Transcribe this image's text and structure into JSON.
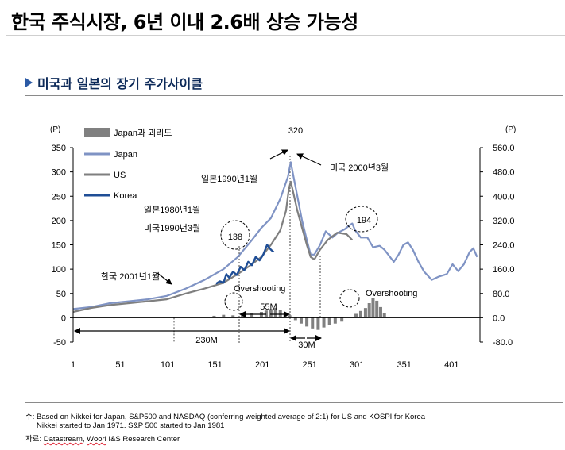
{
  "header": {
    "title": "한국 주식시장, 6년 이내 2.6배 상승 가능성",
    "subtitle": "미국과 일본의 장기 주가사이클"
  },
  "notes": {
    "line1": "주: Based on Nikkei for Japan, S&P500 and NASDAQ (conferring weighted average of 2:1) for US and KOSPI for Korea",
    "line2": "Nikkei started to Jan 1971. S&P 500 started to Jan 1981",
    "source_label": "자료: ",
    "source_part1": "Datastream",
    "source_sep": ", ",
    "source_part2": "Woori",
    "source_rest": " I&S Research Center"
  },
  "colors": {
    "japan": "#7f93c4",
    "us": "#7f7f7f",
    "korea": "#1f4e96",
    "gap": "#808080",
    "accent": "#2b5aa5"
  },
  "chart_data": {
    "type": "line",
    "left_unit": "(P)",
    "right_unit": "(P)",
    "x": {
      "min": 1,
      "max": 431,
      "ticks": [
        1,
        51,
        101,
        151,
        201,
        251,
        301,
        351,
        401
      ]
    },
    "y_left": {
      "min": -50,
      "max": 350,
      "ticks": [
        "350",
        "300",
        "250",
        "200",
        "150",
        "100",
        "50",
        "0",
        "-50"
      ]
    },
    "y_right": {
      "min": -80,
      "max": 560,
      "ticks": [
        "560.0",
        "480.0",
        "400.0",
        "320.0",
        "240.0",
        "160.0",
        "80.0",
        "0.0",
        "-80.0"
      ]
    },
    "legend": [
      {
        "label": "Japan과 괴리도",
        "kind": "bar"
      },
      {
        "label": "Japan",
        "kind": "line",
        "color": "#7f93c4"
      },
      {
        "label": "US",
        "kind": "line",
        "color": "#7f7f7f"
      },
      {
        "label": "Korea",
        "kind": "line",
        "color": "#1f4e96"
      }
    ],
    "series": [
      {
        "name": "Japan",
        "axis": "left",
        "points": [
          [
            1,
            18
          ],
          [
            20,
            22
          ],
          [
            40,
            30
          ],
          [
            60,
            34
          ],
          [
            80,
            38
          ],
          [
            100,
            45
          ],
          [
            120,
            60
          ],
          [
            140,
            78
          ],
          [
            160,
            100
          ],
          [
            175,
            125
          ],
          [
            190,
            160
          ],
          [
            200,
            185
          ],
          [
            210,
            205
          ],
          [
            220,
            245
          ],
          [
            228,
            290
          ],
          [
            231,
            320
          ],
          [
            234,
            290
          ],
          [
            238,
            250
          ],
          [
            243,
            200
          ],
          [
            248,
            160
          ],
          [
            252,
            130
          ],
          [
            256,
            130
          ],
          [
            262,
            150
          ],
          [
            268,
            178
          ],
          [
            275,
            165
          ],
          [
            281,
            175
          ],
          [
            288,
            182
          ],
          [
            293,
            190
          ],
          [
            296,
            194
          ],
          [
            299,
            180
          ],
          [
            305,
            165
          ],
          [
            312,
            165
          ],
          [
            318,
            145
          ],
          [
            325,
            148
          ],
          [
            330,
            140
          ],
          [
            340,
            115
          ],
          [
            345,
            130
          ],
          [
            350,
            150
          ],
          [
            355,
            155
          ],
          [
            360,
            140
          ],
          [
            366,
            115
          ],
          [
            372,
            95
          ],
          [
            380,
            78
          ],
          [
            388,
            85
          ],
          [
            396,
            90
          ],
          [
            402,
            110
          ],
          [
            408,
            96
          ],
          [
            414,
            110
          ],
          [
            420,
            135
          ],
          [
            424,
            143
          ],
          [
            428,
            125
          ]
        ]
      },
      {
        "name": "US",
        "axis": "left",
        "points": [
          [
            1,
            12
          ],
          [
            20,
            20
          ],
          [
            40,
            26
          ],
          [
            60,
            30
          ],
          [
            80,
            34
          ],
          [
            100,
            38
          ],
          [
            120,
            50
          ],
          [
            140,
            60
          ],
          [
            160,
            72
          ],
          [
            175,
            90
          ],
          [
            190,
            110
          ],
          [
            200,
            125
          ],
          [
            210,
            150
          ],
          [
            220,
            180
          ],
          [
            226,
            220
          ],
          [
            229,
            265
          ],
          [
            231,
            280
          ],
          [
            234,
            255
          ],
          [
            238,
            220
          ],
          [
            243,
            185
          ],
          [
            248,
            150
          ],
          [
            252,
            125
          ],
          [
            256,
            120
          ],
          [
            262,
            140
          ],
          [
            270,
            160
          ],
          [
            280,
            175
          ],
          [
            290,
            172
          ],
          [
            296,
            160
          ]
        ]
      },
      {
        "name": "Korea",
        "axis": "left",
        "points": [
          [
            152,
            70
          ],
          [
            156,
            75
          ],
          [
            160,
            72
          ],
          [
            163,
            90
          ],
          [
            166,
            82
          ],
          [
            170,
            95
          ],
          [
            174,
            88
          ],
          [
            178,
            105
          ],
          [
            182,
            98
          ],
          [
            186,
            115
          ],
          [
            190,
            108
          ],
          [
            194,
            125
          ],
          [
            198,
            118
          ],
          [
            202,
            130
          ],
          [
            206,
            150
          ],
          [
            210,
            140
          ],
          [
            213,
            135
          ]
        ]
      },
      {
        "name": "Japan과 괴리도",
        "kind": "bars",
        "axis": "left",
        "points": [
          [
            150,
            4
          ],
          [
            160,
            6
          ],
          [
            170,
            5
          ],
          [
            180,
            8
          ],
          [
            190,
            10
          ],
          [
            200,
            12
          ],
          [
            205,
            15
          ],
          [
            210,
            18
          ],
          [
            215,
            20
          ],
          [
            220,
            16
          ],
          [
            225,
            10
          ],
          [
            230,
            5
          ],
          [
            236,
            -5
          ],
          [
            242,
            -12
          ],
          [
            248,
            -18
          ],
          [
            254,
            -22
          ],
          [
            260,
            -25
          ],
          [
            266,
            -20
          ],
          [
            272,
            -15
          ],
          [
            278,
            -12
          ],
          [
            285,
            -8
          ],
          [
            292,
            2
          ],
          [
            300,
            8
          ],
          [
            305,
            14
          ],
          [
            310,
            20
          ],
          [
            314,
            30
          ],
          [
            318,
            40
          ],
          [
            322,
            35
          ],
          [
            326,
            22
          ],
          [
            330,
            10
          ]
        ]
      }
    ],
    "annotations": {
      "peak_label": "320",
      "peak_left": "일본1990년1월",
      "peak_right": "미국 2000년3월",
      "pair_1": "일본1980년1월",
      "pair_2": "미국1990년3월",
      "korea_start": "한국 2001년1월",
      "circle_138": "138",
      "circle_194": "194",
      "overshoot_left": "Overshooting",
      "overshoot_right": "Overshooting",
      "span_55m": "55M",
      "span_230m": "230M",
      "span_30m": "30M"
    }
  }
}
